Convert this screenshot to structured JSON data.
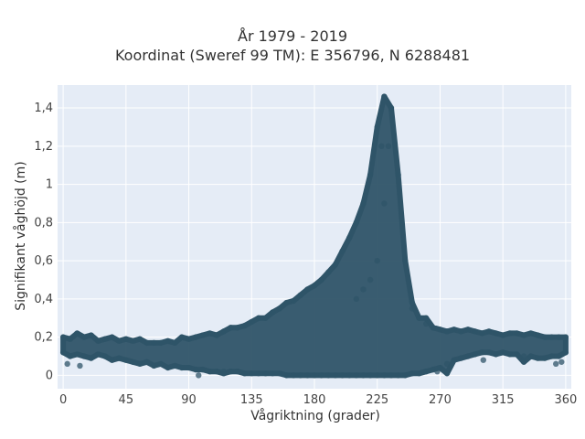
{
  "chart_data": {
    "type": "scatter",
    "title": [
      "År 1979 - 2019",
      "Koordinat (Sweref 99 TM): E 356796, N 6288481"
    ],
    "xlabel": "Vågriktning (grader)",
    "ylabel": "Signifikant våghöjd (m)",
    "xlim": [
      -4,
      364
    ],
    "ylim": [
      -0.07,
      1.52
    ],
    "x_ticks": [
      {
        "value": 0,
        "label": "0"
      },
      {
        "value": 45,
        "label": "45"
      },
      {
        "value": 90,
        "label": "90"
      },
      {
        "value": 135,
        "label": "135"
      },
      {
        "value": 180,
        "label": "180"
      },
      {
        "value": 225,
        "label": "225"
      },
      {
        "value": 270,
        "label": "270"
      },
      {
        "value": 315,
        "label": "315"
      },
      {
        "value": 360,
        "label": "360"
      }
    ],
    "y_ticks": [
      {
        "value": 0,
        "label": "0"
      },
      {
        "value": 0.2,
        "label": "0,2"
      },
      {
        "value": 0.4,
        "label": "0,4"
      },
      {
        "value": 0.6,
        "label": "0,6"
      },
      {
        "value": 0.8,
        "label": "0,8"
      },
      {
        "value": 1.0,
        "label": "1"
      },
      {
        "value": 1.2,
        "label": "1,2"
      },
      {
        "value": 1.4,
        "label": "1,4"
      }
    ],
    "grid": true,
    "marker_color": "#2f5468",
    "plot_background": "#e5ecf6",
    "points": [
      [
        0,
        0.12
      ],
      [
        0,
        0.2
      ],
      [
        5,
        0.1
      ],
      [
        5,
        0.19
      ],
      [
        10,
        0.11
      ],
      [
        10,
        0.22
      ],
      [
        15,
        0.1
      ],
      [
        15,
        0.2
      ],
      [
        20,
        0.09
      ],
      [
        20,
        0.21
      ],
      [
        25,
        0.11
      ],
      [
        25,
        0.18
      ],
      [
        30,
        0.1
      ],
      [
        30,
        0.19
      ],
      [
        35,
        0.08
      ],
      [
        35,
        0.2
      ],
      [
        40,
        0.09
      ],
      [
        40,
        0.18
      ],
      [
        45,
        0.08
      ],
      [
        45,
        0.19
      ],
      [
        50,
        0.07
      ],
      [
        50,
        0.18
      ],
      [
        55,
        0.06
      ],
      [
        55,
        0.19
      ],
      [
        60,
        0.07
      ],
      [
        60,
        0.17
      ],
      [
        65,
        0.05
      ],
      [
        65,
        0.17
      ],
      [
        70,
        0.06
      ],
      [
        70,
        0.17
      ],
      [
        75,
        0.04
      ],
      [
        75,
        0.18
      ],
      [
        80,
        0.05
      ],
      [
        80,
        0.17
      ],
      [
        85,
        0.04
      ],
      [
        85,
        0.2
      ],
      [
        90,
        0.04
      ],
      [
        90,
        0.19
      ],
      [
        95,
        0.03
      ],
      [
        95,
        0.2
      ],
      [
        100,
        0.03
      ],
      [
        100,
        0.21
      ],
      [
        105,
        0.02
      ],
      [
        105,
        0.22
      ],
      [
        110,
        0.02
      ],
      [
        110,
        0.21
      ],
      [
        115,
        0.02
      ],
      [
        115,
        0.23
      ],
      [
        120,
        0.02
      ],
      [
        120,
        0.25
      ],
      [
        125,
        0.02
      ],
      [
        125,
        0.25
      ],
      [
        130,
        0.01
      ],
      [
        130,
        0.26
      ],
      [
        135,
        0.01
      ],
      [
        135,
        0.28
      ],
      [
        140,
        0.01
      ],
      [
        140,
        0.3
      ],
      [
        145,
        0.01
      ],
      [
        145,
        0.3
      ],
      [
        150,
        0.01
      ],
      [
        150,
        0.33
      ],
      [
        155,
        0.01
      ],
      [
        155,
        0.35
      ],
      [
        160,
        0.0
      ],
      [
        160,
        0.38
      ],
      [
        165,
        0.0
      ],
      [
        165,
        0.39
      ],
      [
        170,
        0.0
      ],
      [
        170,
        0.42
      ],
      [
        175,
        0.0
      ],
      [
        175,
        0.45
      ],
      [
        180,
        0.0
      ],
      [
        180,
        0.47
      ],
      [
        185,
        0.0
      ],
      [
        185,
        0.5
      ],
      [
        190,
        0.0
      ],
      [
        190,
        0.54
      ],
      [
        195,
        0.0
      ],
      [
        195,
        0.58
      ],
      [
        200,
        0.0
      ],
      [
        200,
        0.65
      ],
      [
        205,
        0.0
      ],
      [
        205,
        0.72
      ],
      [
        210,
        0.0
      ],
      [
        210,
        0.8
      ],
      [
        215,
        0.0
      ],
      [
        215,
        0.9
      ],
      [
        220,
        0.0
      ],
      [
        220,
        1.05
      ],
      [
        225,
        0.0
      ],
      [
        225,
        1.3
      ],
      [
        230,
        0.0
      ],
      [
        230,
        1.46
      ],
      [
        235,
        0.0
      ],
      [
        235,
        1.4
      ],
      [
        240,
        0.0
      ],
      [
        240,
        1.05
      ],
      [
        245,
        0.0
      ],
      [
        245,
        0.6
      ],
      [
        250,
        0.01
      ],
      [
        250,
        0.38
      ],
      [
        255,
        0.01
      ],
      [
        255,
        0.3
      ],
      [
        260,
        0.02
      ],
      [
        260,
        0.27
      ],
      [
        265,
        0.03
      ],
      [
        265,
        0.25
      ],
      [
        270,
        0.04
      ],
      [
        270,
        0.24
      ],
      [
        275,
        0.06
      ],
      [
        275,
        0.23
      ],
      [
        280,
        0.08
      ],
      [
        280,
        0.24
      ],
      [
        285,
        0.09
      ],
      [
        285,
        0.23
      ],
      [
        290,
        0.1
      ],
      [
        290,
        0.24
      ],
      [
        295,
        0.11
      ],
      [
        295,
        0.23
      ],
      [
        300,
        0.12
      ],
      [
        300,
        0.22
      ],
      [
        305,
        0.12
      ],
      [
        305,
        0.23
      ],
      [
        310,
        0.11
      ],
      [
        310,
        0.22
      ],
      [
        315,
        0.12
      ],
      [
        315,
        0.21
      ],
      [
        320,
        0.11
      ],
      [
        320,
        0.22
      ],
      [
        325,
        0.11
      ],
      [
        325,
        0.22
      ],
      [
        330,
        0.1
      ],
      [
        330,
        0.21
      ],
      [
        335,
        0.1
      ],
      [
        335,
        0.22
      ],
      [
        340,
        0.09
      ],
      [
        340,
        0.21
      ],
      [
        345,
        0.09
      ],
      [
        345,
        0.2
      ],
      [
        350,
        0.1
      ],
      [
        350,
        0.2
      ],
      [
        355,
        0.1
      ],
      [
        355,
        0.2
      ],
      [
        360,
        0.12
      ],
      [
        360,
        0.2
      ],
      [
        225,
        0.6
      ],
      [
        230,
        0.9
      ],
      [
        228,
        1.2
      ],
      [
        233,
        1.2
      ],
      [
        220,
        0.5
      ],
      [
        210,
        0.4
      ],
      [
        215,
        0.45
      ],
      [
        3,
        0.06
      ],
      [
        12,
        0.05
      ],
      [
        97,
        0.0
      ],
      [
        115,
        0.01
      ],
      [
        301,
        0.08
      ],
      [
        330,
        0.07
      ],
      [
        353,
        0.06
      ],
      [
        357,
        0.07
      ],
      [
        268,
        0.02
      ],
      [
        275,
        0.01
      ],
      [
        250,
        0.35
      ],
      [
        260,
        0.3
      ]
    ]
  }
}
